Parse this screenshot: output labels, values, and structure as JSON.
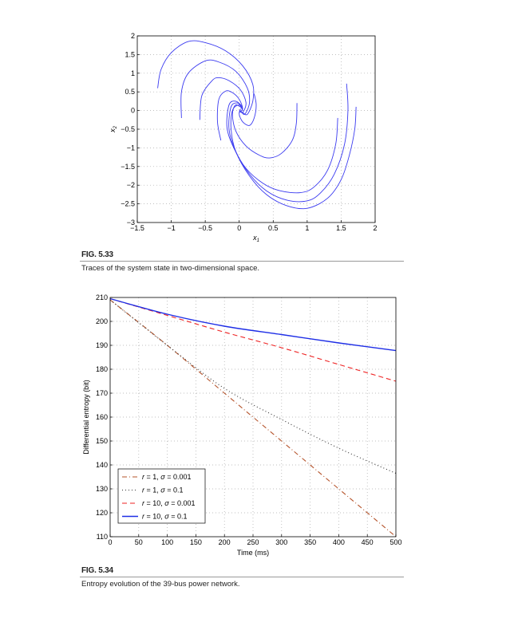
{
  "figures": [
    {
      "label": "FIG. 5.33",
      "caption": "Traces of the system state in two-dimensional space."
    },
    {
      "label": "FIG. 5.34",
      "caption": "Entropy evolution of the 39-bus power network."
    }
  ],
  "chart_data": [
    {
      "type": "line",
      "xlabel": "x1",
      "ylabel": "x2",
      "xlim": [
        -1.5,
        2
      ],
      "ylim": [
        -3,
        2
      ],
      "xticks": [
        -1.5,
        -1,
        -0.5,
        0,
        0.5,
        1,
        1.5,
        2
      ],
      "yticks": [
        -3,
        -2.5,
        -2,
        -1.5,
        -1,
        -0.5,
        0,
        0.5,
        1,
        1.5,
        2
      ],
      "xtick_labels": [
        "−1.5",
        "−1",
        "−0.5",
        "0",
        "0.5",
        "1",
        "1.5",
        "2"
      ],
      "ytick_labels": [
        "−3",
        "−2.5",
        "−2",
        "−1.5",
        "−1",
        "−0.5",
        "0",
        "0.5",
        "1",
        "1.5",
        "2"
      ],
      "grid": true,
      "color": "#3a3af0",
      "traces": [
        [
          [
            1.72,
            0.1
          ],
          [
            1.7,
            -0.5
          ],
          [
            1.62,
            -1.2
          ],
          [
            1.5,
            -1.85
          ],
          [
            1.3,
            -2.35
          ],
          [
            1.0,
            -2.62
          ],
          [
            0.7,
            -2.55
          ],
          [
            0.4,
            -2.25
          ],
          [
            0.15,
            -1.75
          ],
          [
            -0.05,
            -1.1
          ],
          [
            -0.12,
            -0.5
          ],
          [
            -0.1,
            0
          ],
          [
            0,
            0.15
          ],
          [
            0.05,
            0
          ]
        ],
        [
          [
            1.58,
            0.72
          ],
          [
            1.6,
            0
          ],
          [
            1.55,
            -0.9
          ],
          [
            1.4,
            -1.7
          ],
          [
            1.2,
            -2.2
          ],
          [
            1.0,
            -2.42
          ],
          [
            0.7,
            -2.4
          ],
          [
            0.4,
            -2.15
          ],
          [
            0.15,
            -1.7
          ],
          [
            -0.05,
            -1.1
          ],
          [
            -0.15,
            -0.5
          ],
          [
            -0.12,
            0.1
          ],
          [
            -0.02,
            0.2
          ],
          [
            0.05,
            0.05
          ]
        ],
        [
          [
            1.45,
            -0.2
          ],
          [
            1.42,
            -0.9
          ],
          [
            1.3,
            -1.6
          ],
          [
            1.1,
            -2.05
          ],
          [
            0.9,
            -2.2
          ],
          [
            0.6,
            -2.15
          ],
          [
            0.35,
            -1.95
          ],
          [
            0.1,
            -1.55
          ],
          [
            -0.08,
            -1.0
          ],
          [
            -0.18,
            -0.45
          ],
          [
            -0.15,
            0.15
          ],
          [
            -0.05,
            0.25
          ],
          [
            0.05,
            0.1
          ]
        ],
        [
          [
            0.85,
            0.2
          ],
          [
            0.84,
            -0.35
          ],
          [
            0.78,
            -0.8
          ],
          [
            0.62,
            -1.15
          ],
          [
            0.45,
            -1.27
          ],
          [
            0.3,
            -1.2
          ],
          [
            0.1,
            -0.95
          ],
          [
            -0.05,
            -0.55
          ],
          [
            -0.1,
            -0.1
          ],
          [
            -0.05,
            0.15
          ],
          [
            0.05,
            0.05
          ]
        ],
        [
          [
            0.22,
            0.45
          ],
          [
            0.25,
            0.15
          ],
          [
            0.22,
            -0.2
          ],
          [
            0.15,
            -0.4
          ],
          [
            0.05,
            -0.3
          ],
          [
            0,
            -0.1
          ],
          [
            0.02,
            0.05
          ]
        ],
        [
          [
            -1.2,
            0.6
          ],
          [
            -1.15,
            1.1
          ],
          [
            -1.0,
            1.55
          ],
          [
            -0.75,
            1.85
          ],
          [
            -0.5,
            1.82
          ],
          [
            -0.2,
            1.6
          ],
          [
            0.05,
            1.2
          ],
          [
            0.2,
            0.7
          ],
          [
            0.2,
            0.25
          ],
          [
            0.12,
            -0.1
          ],
          [
            0.05,
            -0.05
          ]
        ],
        [
          [
            -0.85,
            -0.2
          ],
          [
            -0.85,
            0.5
          ],
          [
            -0.75,
            1.0
          ],
          [
            -0.5,
            1.33
          ],
          [
            -0.3,
            1.3
          ],
          [
            -0.05,
            1.05
          ],
          [
            0.12,
            0.6
          ],
          [
            0.15,
            0.2
          ],
          [
            0.08,
            -0.1
          ],
          [
            0.02,
            0
          ]
        ],
        [
          [
            -0.58,
            -0.25
          ],
          [
            -0.55,
            0.4
          ],
          [
            -0.4,
            0.8
          ],
          [
            -0.3,
            0.88
          ],
          [
            -0.15,
            0.8
          ],
          [
            0.02,
            0.55
          ],
          [
            0.1,
            0.2
          ],
          [
            0.05,
            -0.05
          ],
          [
            0,
            0
          ]
        ],
        [
          [
            -0.27,
            -0.8
          ],
          [
            -0.32,
            -0.3
          ],
          [
            -0.3,
            0.3
          ],
          [
            -0.2,
            0.52
          ],
          [
            -0.1,
            0.48
          ],
          [
            0,
            0.3
          ],
          [
            0.05,
            0.05
          ],
          [
            0,
            -0.05
          ]
        ]
      ]
    },
    {
      "type": "line",
      "xlabel": "Time (ms)",
      "ylabel": "Differential entropy (bit)",
      "xlim": [
        0,
        500
      ],
      "ylim": [
        110,
        210
      ],
      "xticks": [
        0,
        50,
        100,
        150,
        200,
        250,
        300,
        350,
        400,
        450,
        500
      ],
      "yticks": [
        110,
        120,
        130,
        140,
        150,
        160,
        170,
        180,
        190,
        200,
        210
      ],
      "grid": true,
      "legend_position": "bottom-left",
      "x": [
        0,
        100,
        200,
        300,
        400,
        500
      ],
      "series": [
        {
          "name": "r = 1, σ = 0.001",
          "name_r": "r",
          "name_rv": "= 1,",
          "name_s": "σ",
          "name_sv": "= 0.001",
          "color": "#b5532a",
          "style": "dashdot",
          "values": [
            209,
            190,
            170,
            150,
            130,
            110
          ]
        },
        {
          "name": "r = 1, σ = 0.1",
          "name_r": "r",
          "name_rv": "= 1,",
          "name_s": "σ",
          "name_sv": "= 0.1",
          "color": "#333333",
          "style": "dotted",
          "values": [
            209,
            190,
            172,
            159,
            147,
            136.5
          ]
        },
        {
          "name": "r = 10, σ = 0.001",
          "name_r": "r",
          "name_rv": "= 10,",
          "name_s": "σ",
          "name_sv": "= 0.001",
          "color": "#ee2222",
          "style": "dashed",
          "values": [
            209.5,
            202.5,
            195.5,
            189,
            182,
            175
          ]
        },
        {
          "name": "r = 10, σ = 0.1",
          "name_r": "r",
          "name_rv": "= 10,",
          "name_s": "σ",
          "name_sv": "= 0.1",
          "color": "#1e2ee6",
          "style": "solid",
          "values": [
            209.5,
            203,
            198,
            194.5,
            191,
            187.8
          ]
        }
      ]
    }
  ]
}
